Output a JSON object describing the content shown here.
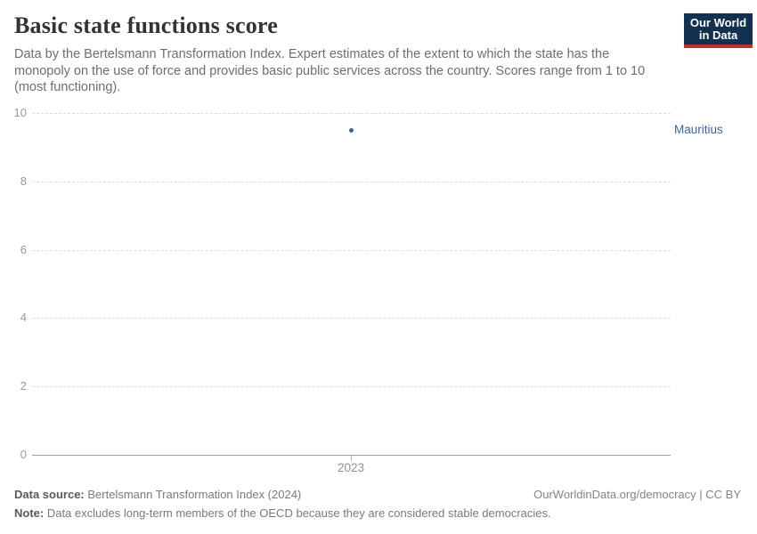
{
  "header": {
    "title": "Basic state functions score",
    "subtitle": "Data by the Bertelsmann Transformation Index. Expert estimates of the extent to which the state has the monopoly on the use of force and provides basic public services across the country. Scores range from 1 to 10 (most functioning).",
    "logo": {
      "line1": "Our World",
      "line2": "in Data"
    }
  },
  "chart_data": {
    "type": "scatter",
    "title": "Basic state functions score",
    "x": [
      2023
    ],
    "series": [
      {
        "name": "Mauritius",
        "values": [
          9.5
        ]
      }
    ],
    "xlabel": "",
    "ylabel": "",
    "ylim": [
      0,
      10
    ],
    "yticks": [
      0,
      2,
      4,
      6,
      8,
      10
    ],
    "xticks": [
      "2023"
    ],
    "grid": "horizontal-dashed",
    "legend_position": "right-entity-label",
    "entity_label": "Mauritius"
  },
  "footer": {
    "datasource_label": "Data source:",
    "datasource_value": " Bertelsmann Transformation Index (2024)",
    "license_link": "OurWorldinData.org/democracy | CC BY",
    "note_label": "Note:",
    "note_value": " Data excludes long-term members of the OECD because they are considered stable democracies."
  },
  "colors": {
    "accent_blue": "#3d64a8",
    "title_text": "#333333",
    "subtitle_text": "#6e6e6e",
    "grid": "#dcdcdc",
    "axis": "#9e9e9e",
    "tick_label": "#999999",
    "logo_navy": "#12304f",
    "logo_red": "#c0312f"
  }
}
